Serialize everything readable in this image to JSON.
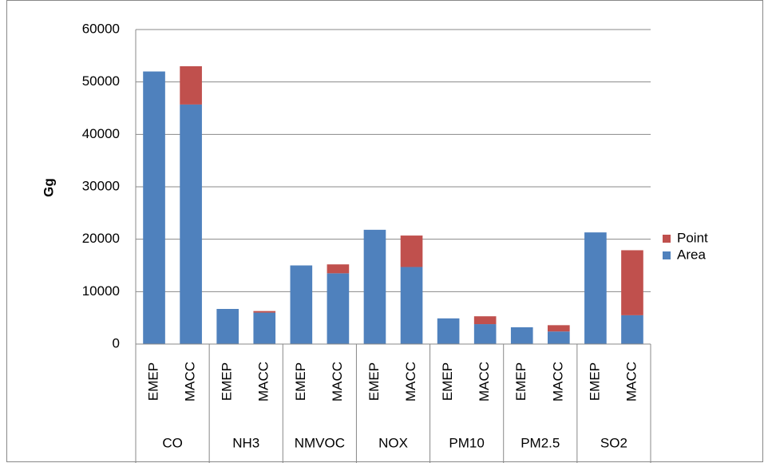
{
  "chart_data": {
    "type": "bar",
    "stacked": true,
    "ylabel": "Gg",
    "groups": [
      "CO",
      "NH3",
      "NMVOC",
      "NOX",
      "PM10",
      "PM2.5",
      "SO2"
    ],
    "categories": [
      "EMEP",
      "MACC",
      "EMEP",
      "MACC",
      "EMEP",
      "MACC",
      "EMEP",
      "MACC",
      "EMEP",
      "MACC",
      "EMEP",
      "MACC",
      "EMEP",
      "MACC"
    ],
    "series": [
      {
        "name": "Area",
        "color": "#4f81bd",
        "values": [
          52000,
          45700,
          6700,
          6000,
          15000,
          13500,
          21800,
          14700,
          4900,
          3800,
          3200,
          2400,
          21300,
          5500
        ]
      },
      {
        "name": "Point",
        "color": "#c0504d",
        "values": [
          0,
          7300,
          0,
          300,
          0,
          1700,
          0,
          6000,
          0,
          1500,
          0,
          1200,
          0,
          12400
        ]
      }
    ],
    "ylim": [
      0,
      60000
    ],
    "yticks": [
      0,
      10000,
      20000,
      30000,
      40000,
      50000,
      60000
    ],
    "grid": true,
    "legend": "right"
  }
}
